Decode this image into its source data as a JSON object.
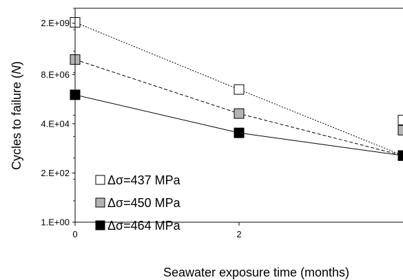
{
  "chart_data": {
    "type": "scatter",
    "xlabel": "Seawater exposure time (months)",
    "ylabel": "Cycles to failure (N)",
    "ylabel_main": "Cycles to failure (",
    "ylabel_var": "N",
    "ylabel_close": ")",
    "y_scale": "log",
    "xlim": [
      0,
      4
    ],
    "ylim": [
      1,
      10000000000.0
    ],
    "x_ticks": [
      0,
      2
    ],
    "x_tick_labels": [
      "0",
      "2"
    ],
    "y_ticks": [
      1,
      200,
      40000,
      8000000,
      2000000000
    ],
    "y_tick_labels": [
      "1.E+00",
      "2.E+02",
      "4.E+04",
      "8.E+06",
      "2.E+09"
    ],
    "grid": false,
    "legend_position": "bottom-left",
    "series": [
      {
        "name": "Δσ=437 MPa",
        "marker_fill": "#ffffff",
        "line_style": "dotted",
        "x": [
          0,
          2,
          4
        ],
        "y": [
          2200000000,
          1600000,
          1300
        ]
      },
      {
        "name": "Δσ=450 MPa",
        "marker_fill": "#b3b3b3",
        "line_style": "dashed",
        "x": [
          0,
          2,
          4
        ],
        "y": [
          40000000,
          120000,
          1300
        ]
      },
      {
        "name": "Δσ=464 MPa",
        "marker_fill": "#000000",
        "line_style": "solid",
        "x": [
          0,
          2,
          4
        ],
        "y": [
          900000,
          15000,
          1300
        ]
      }
    ],
    "clipped_points": [
      {
        "series": 0,
        "x": 4,
        "y": 60000
      },
      {
        "series": 1,
        "x": 4,
        "y": 20000
      }
    ]
  }
}
